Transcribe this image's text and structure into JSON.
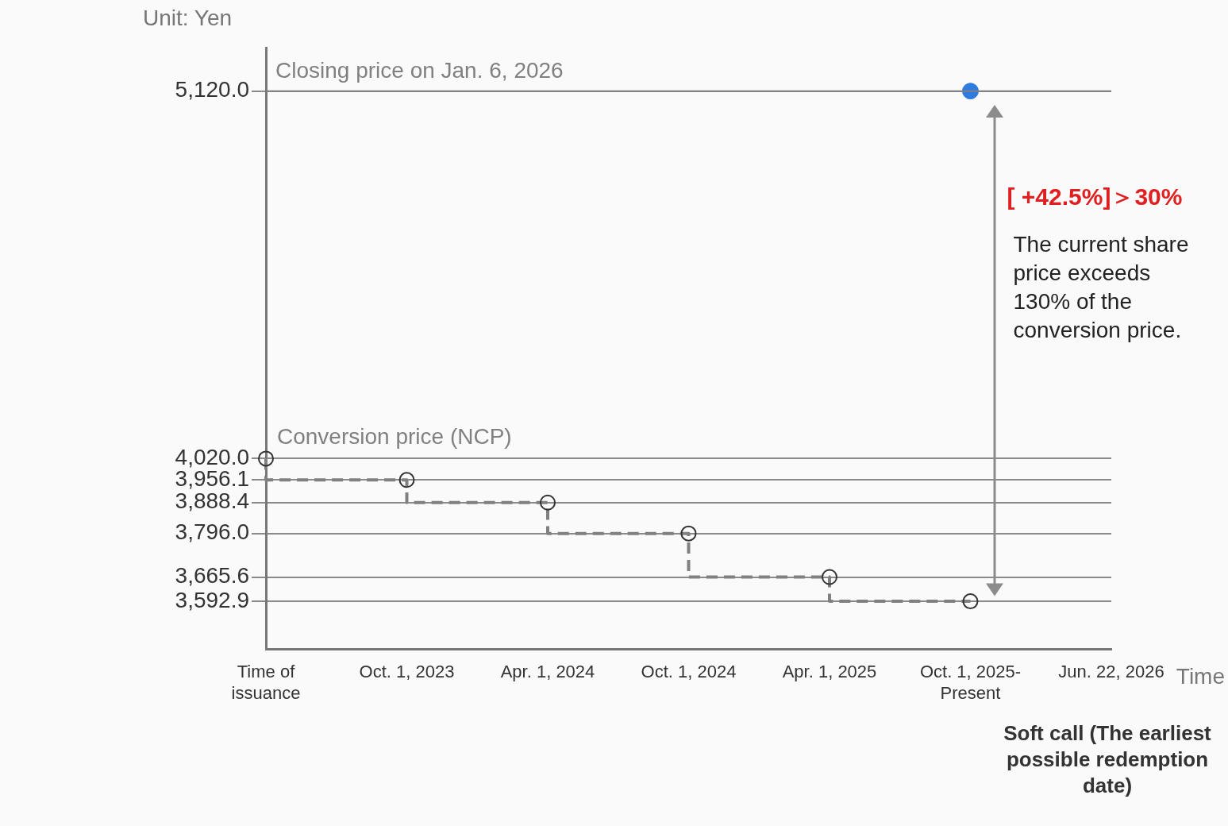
{
  "chart_data": {
    "type": "step",
    "ylabel": "Unit: Yen",
    "xlabel": "Time",
    "categories": [
      "Time of issuance",
      "Oct. 1, 2023",
      "Apr. 1, 2024",
      "Oct. 1, 2024",
      "Apr. 1, 2025",
      "Oct. 1, 2025-Present",
      "Jun. 22, 2026"
    ],
    "series": [
      {
        "name": "Conversion price (NCP)",
        "color": "#808080",
        "values": [
          4020.0,
          3956.1,
          3888.4,
          3796.0,
          3665.6,
          3592.9,
          null
        ]
      },
      {
        "type": "scatter",
        "color": "#2f7be0",
        "values": [
          null,
          null,
          null,
          null,
          null,
          5120.0,
          null
        ]
      }
    ],
    "ylim": [
      3450,
      5250
    ],
    "yticks": [
      {
        "value": 3592.9,
        "label": "3,592.9"
      },
      {
        "value": 3665.6,
        "label": "3,665.6"
      },
      {
        "value": 3796.0,
        "label": "3,796.0"
      },
      {
        "value": 3888.4,
        "label": "3,888.4"
      },
      {
        "value": 3956.1,
        "label": "3,956.1"
      },
      {
        "value": 4020.0,
        "label": "4,020.0"
      },
      {
        "value": 5120.0,
        "label": "5,120.0"
      }
    ],
    "ref_lines": [
      {
        "axis": "y",
        "value": 5120.0,
        "label": "Closing price on Jan. 6, 2026",
        "color": "#808080"
      }
    ],
    "annotations": [
      "[ +42.5%]＞30%",
      "The current share price exceeds 130% of the conversion price.",
      "Soft call (The earliest possible redemption date)"
    ],
    "grid": "y",
    "legend": false,
    "marker": "circle",
    "line_style": "dashed"
  }
}
